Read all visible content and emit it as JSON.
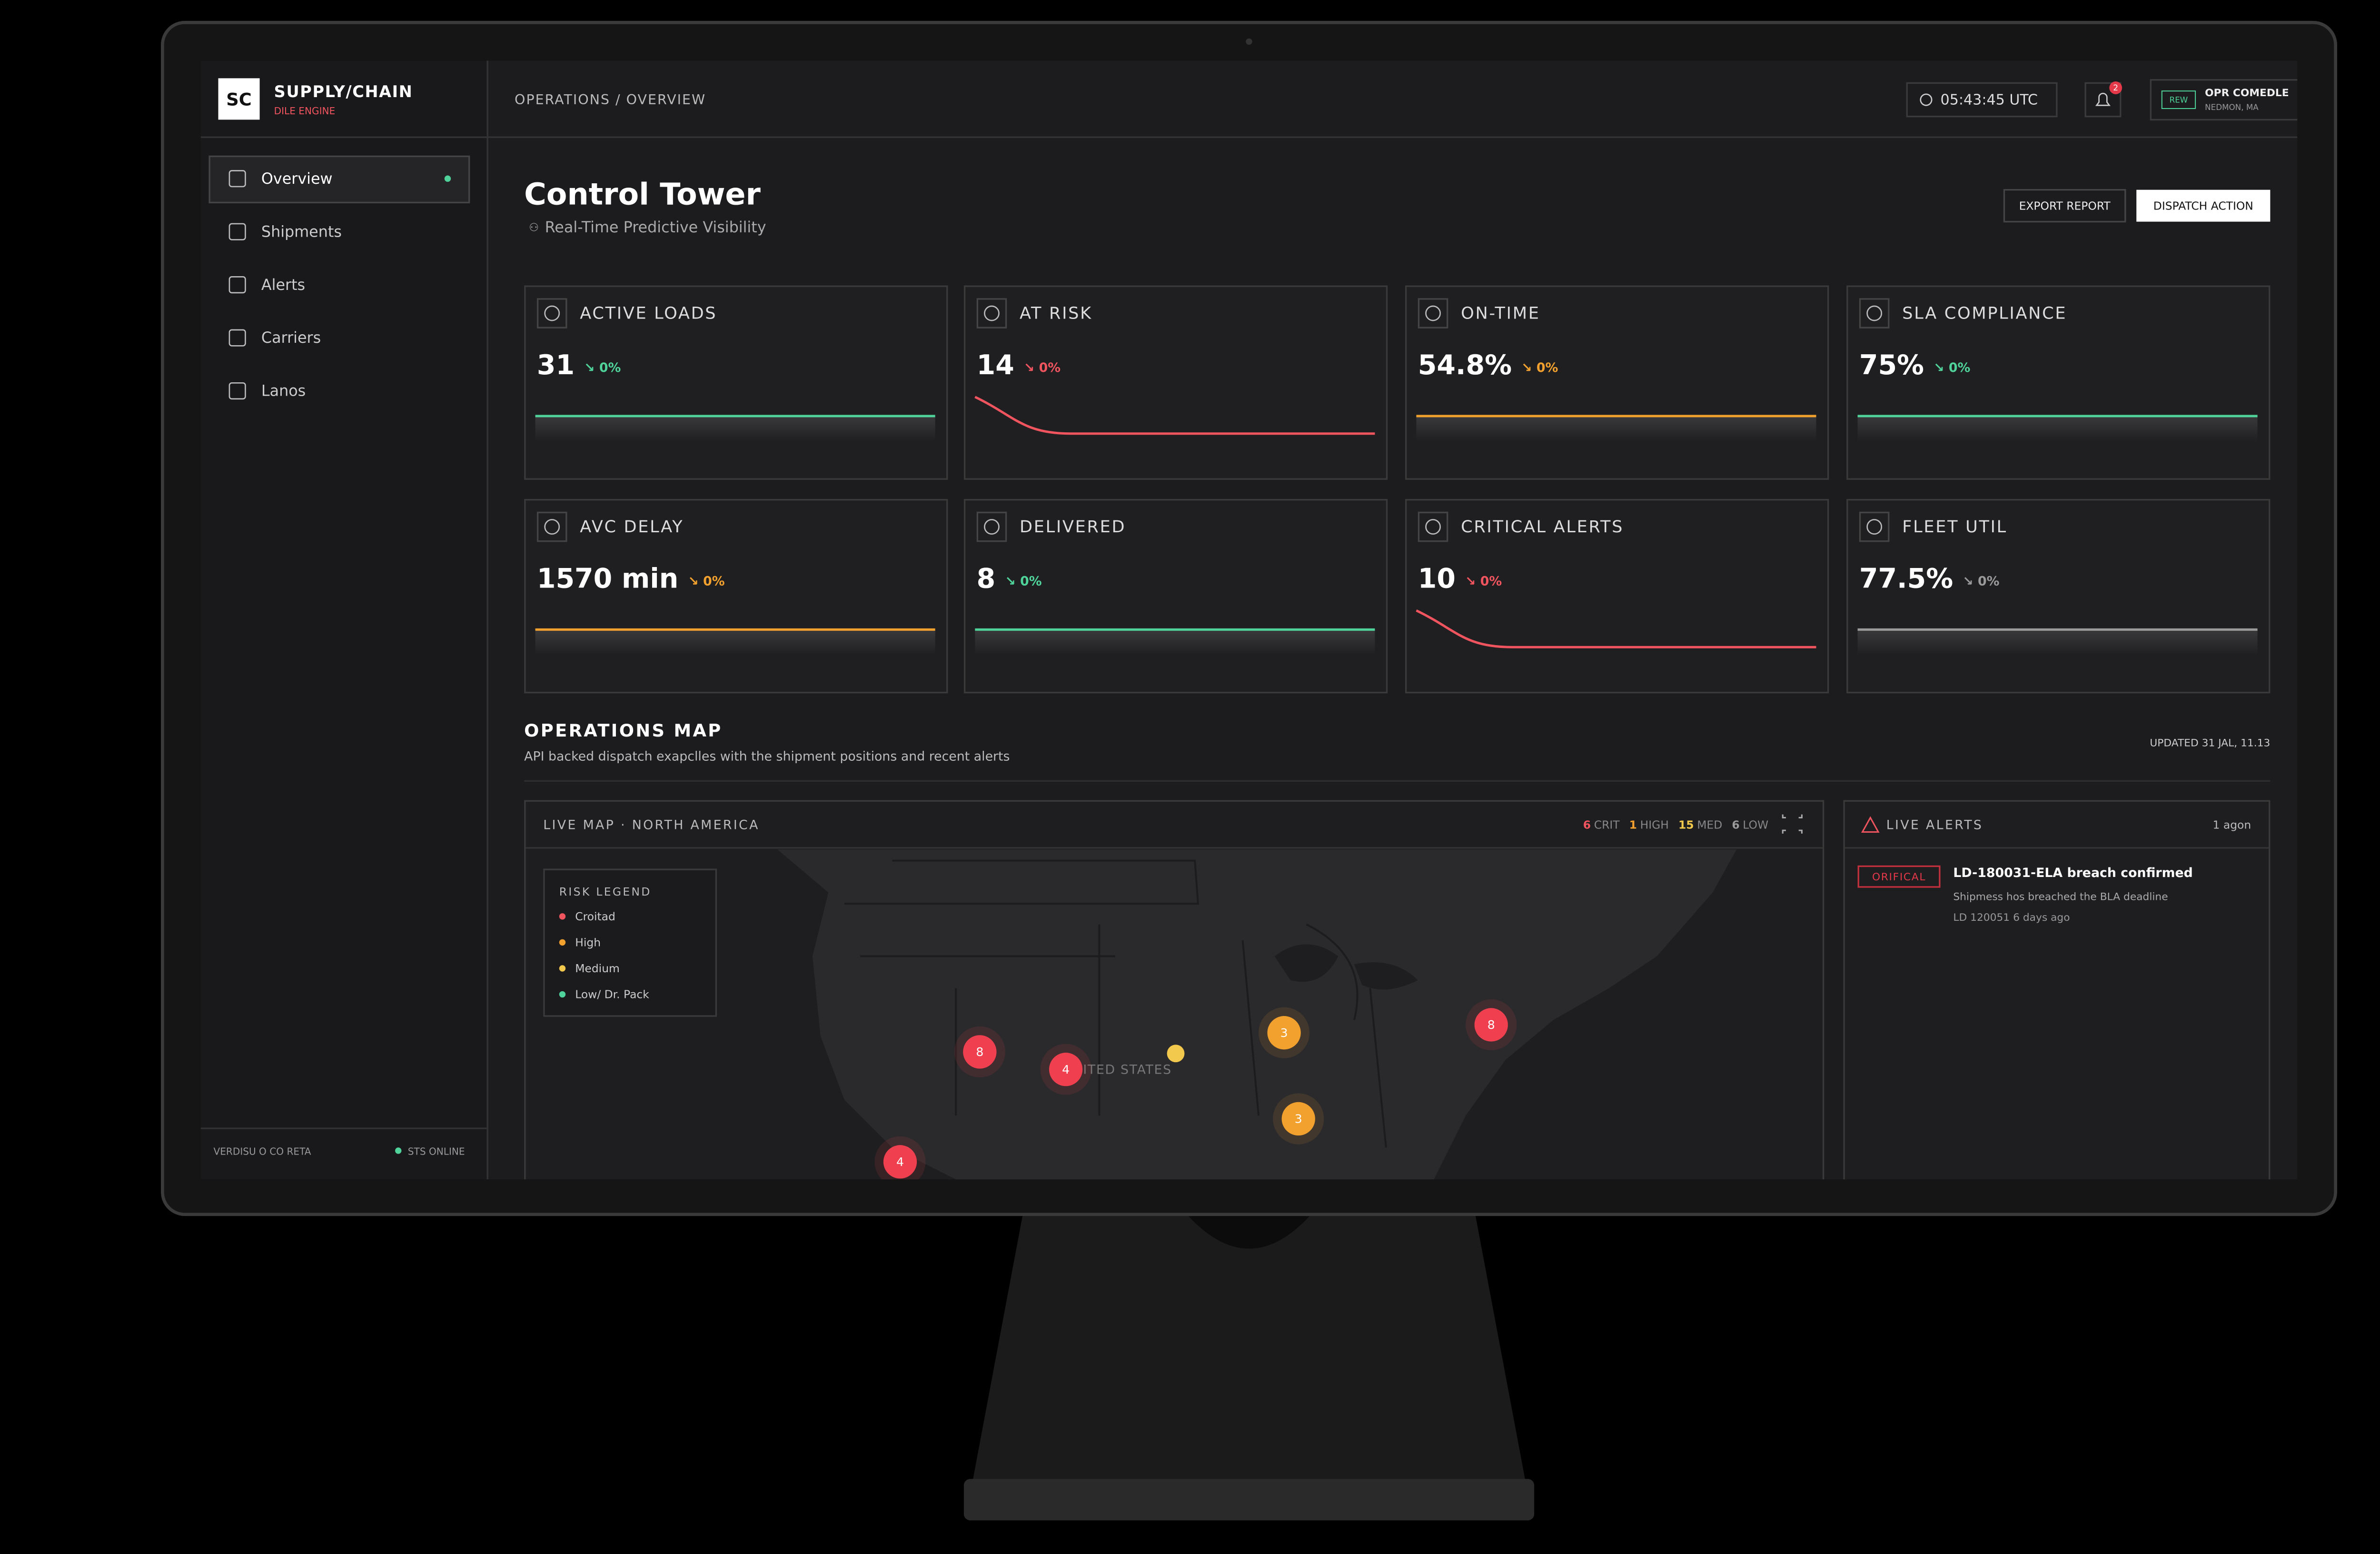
{
  "brand": {
    "logo": "SC",
    "name": "SUPPLY/CHAIN",
    "tagline": "DILE ENGINE"
  },
  "nav": [
    {
      "label": "Overview",
      "active": true
    },
    {
      "label": "Shipments",
      "active": false
    },
    {
      "label": "Alerts",
      "active": false
    },
    {
      "label": "Carriers",
      "active": false
    },
    {
      "label": "Lanos",
      "active": false
    }
  ],
  "sidebar_footer": {
    "version": "VERDISU O CO RETA",
    "status": "STS ONLINE"
  },
  "header": {
    "breadcrumb": "OPERATIONS / OVERVIEW",
    "clock": "05:43:45 UTC",
    "notifications": "2",
    "user_badge": "REW",
    "user_name": "OPR COMEDLE",
    "user_location": "NEDMON, MA"
  },
  "page": {
    "title": "Control Tower",
    "subtitle": "Real-Time Predictive Visibility",
    "actions": [
      "EXPORT REPORT",
      "DISPATCH ACTION"
    ]
  },
  "kpis": [
    {
      "label": "ACTIVE LOADS",
      "value": "31",
      "change": "↘ 0%",
      "color": "#4fd39a",
      "shape": "flat"
    },
    {
      "label": "AT RISK",
      "value": "14",
      "change": "↘ 0%",
      "color": "#f0555f",
      "shape": "falling"
    },
    {
      "label": "ON-TIME",
      "value": "54.8%",
      "change": "↘ 0%",
      "color": "#f2a02e",
      "shape": "flat"
    },
    {
      "label": "SLA COMPLIANCE",
      "value": "75%",
      "change": "↘ 0%",
      "color": "#4fd39a",
      "shape": "flat"
    },
    {
      "label": "AVC DELAY",
      "value": "1570 min",
      "change": "↘ 0%",
      "color": "#f2a02e",
      "shape": "flat"
    },
    {
      "label": "DELIVERED",
      "value": "8",
      "change": "↘ 0%",
      "color": "#4fd39a",
      "shape": "flat"
    },
    {
      "label": "CRITICAL ALERTS",
      "value": "10",
      "change": "↘ 0%",
      "color": "#f0555f",
      "shape": "falling"
    },
    {
      "label": "FLEET UTIL",
      "value": "77.5%",
      "change": "↘ 0%",
      "color": "#9a9a9a",
      "shape": "flat"
    }
  ],
  "map_section": {
    "title": "OPERATIONS MAP",
    "description": "API backed dispatch exapclles with the shipment positions and recent alerts",
    "updated": "UPDATED 31 JAL, 11.13"
  },
  "map": {
    "title": "LIVE MAP · NORTH AMERICA",
    "counts": [
      {
        "count": "6",
        "label": "CRIT",
        "color": "#f0555f"
      },
      {
        "count": "1",
        "label": "HIGH",
        "color": "#f2a02e"
      },
      {
        "count": "15",
        "label": "MED",
        "color": "#f2c94c"
      },
      {
        "count": "6",
        "label": "LOW",
        "color": "#9a9a9a"
      }
    ],
    "legend_title": "RISK LEGEND",
    "legend": [
      {
        "label": "Croitad",
        "color": "#f0555f"
      },
      {
        "label": "High",
        "color": "#f2a02e"
      },
      {
        "label": "Medium",
        "color": "#f2c94c"
      },
      {
        "label": "Low/ Dr. Pack",
        "color": "#4fd39a"
      }
    ],
    "region_label": "UNITED STATES",
    "markers": [
      {
        "label": "8",
        "color": "#f0404f"
      },
      {
        "label": "4",
        "color": "#f0404f"
      },
      {
        "label": "3",
        "color": "#f2a02e"
      },
      {
        "label": "3",
        "color": "#f2a02e"
      },
      {
        "label": "8",
        "color": "#f0404f"
      },
      {
        "label": "4",
        "color": "#f0404f"
      }
    ]
  },
  "alerts": {
    "title": "LIVE ALERTS",
    "age": "1 agon",
    "items": [
      {
        "severity": "ORIFICAL",
        "title": "LD-180031-ELA breach confirmed",
        "description": "Shipmess hos breached the BLA deadline",
        "meta": "LD 120051   6 days ago"
      }
    ]
  }
}
